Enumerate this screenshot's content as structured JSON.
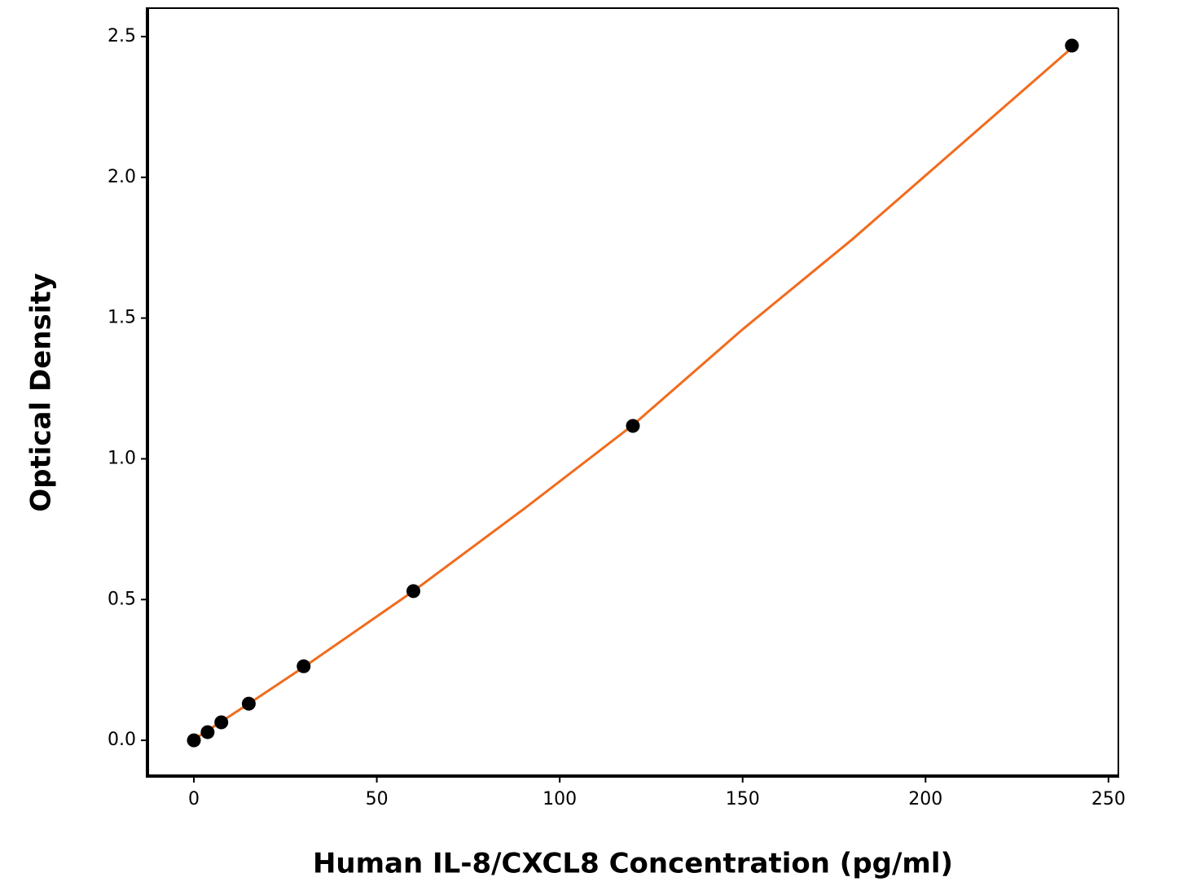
{
  "chart_data": {
    "type": "scatter",
    "xlabel": "Human IL-8/CXCL8 Concentration (pg/ml)",
    "ylabel": "Optical Density",
    "xlim": [
      -12.7,
      252.7
    ],
    "xticks": [
      0,
      50,
      100,
      150,
      200,
      250
    ],
    "ylim": [
      -0.127,
      2.601
    ],
    "yticks": [
      {
        "value": 0,
        "label": "0.0"
      },
      0.5,
      {
        "value": 1,
        "label": "1.0"
      },
      1.5,
      {
        "value": 2,
        "label": "2.0"
      },
      2.5
    ],
    "series": [
      {
        "type": "line",
        "color": "#f26b1d",
        "x": [
          0,
          15,
          30,
          60,
          90,
          120,
          150,
          180,
          210,
          240
        ],
        "values": [
          0.003,
          0.13,
          0.26,
          0.53,
          0.82,
          1.12,
          1.46,
          1.78,
          2.12,
          2.46
        ]
      },
      {
        "type": "scatter",
        "color": "#000000",
        "x": [
          0,
          3.75,
          7.5,
          15,
          30,
          60,
          120,
          240
        ],
        "values": [
          0,
          0.029,
          0.064,
          0.13,
          0.263,
          0.53,
          1.117,
          2.468
        ]
      }
    ]
  }
}
